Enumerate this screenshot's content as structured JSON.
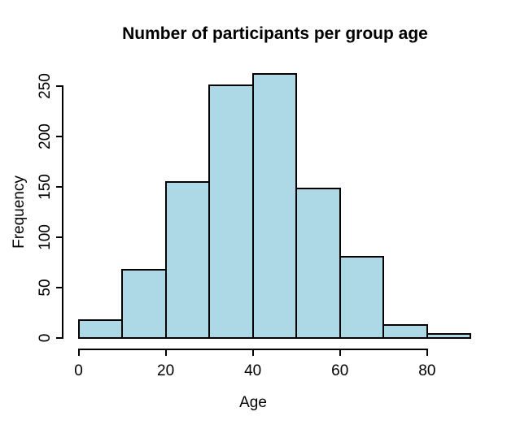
{
  "figure": {
    "title": "Number of participants per group age",
    "x_axis": {
      "label": "Age",
      "tick_labels": [
        "0",
        "20",
        "40",
        "60",
        "80"
      ]
    },
    "y_axis": {
      "label": "Frequency",
      "tick_labels": [
        "0",
        "50",
        "100",
        "150",
        "200",
        "250"
      ]
    }
  },
  "colors": {
    "background": "#FFFFFF",
    "bar_fill": "#ADD8E6",
    "bar_border": "#000000",
    "axis": "#000000",
    "text": "#000000"
  },
  "chart_data": {
    "type": "bar",
    "subtype": "histogram",
    "title": "Number of participants per group age",
    "xlabel": "Age",
    "ylabel": "Frequency",
    "bin_edges": [
      0,
      10,
      20,
      30,
      40,
      50,
      60,
      70,
      80,
      90
    ],
    "counts": [
      18,
      68,
      155,
      251,
      262,
      148,
      81,
      13,
      4
    ],
    "x_ticks": [
      0,
      20,
      40,
      60,
      80
    ],
    "y_ticks": [
      0,
      50,
      100,
      150,
      200,
      250
    ],
    "xlim": [
      0,
      90
    ],
    "ylim": [
      0,
      262
    ],
    "grid": false,
    "legend": false
  }
}
